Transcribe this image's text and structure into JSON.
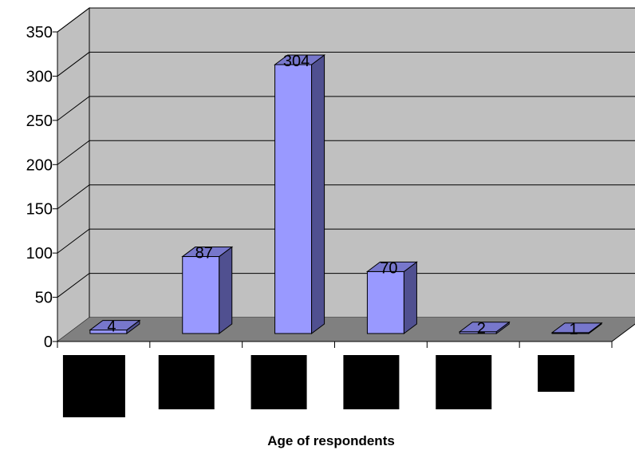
{
  "chart_data": {
    "type": "bar",
    "title": "",
    "xlabel": "Age of respondents",
    "ylabel": "",
    "categories": [
      "",
      "",
      "",
      "",
      "",
      ""
    ],
    "values": [
      4,
      87,
      304,
      70,
      2,
      1
    ],
    "ylim": [
      0,
      350
    ],
    "yticks": [
      0,
      50,
      100,
      150,
      200,
      250,
      300,
      350
    ],
    "yticks_labels": [
      "0",
      "50",
      "100",
      "150",
      "200",
      "250",
      "300",
      "350"
    ],
    "data_labels": [
      "4",
      "87",
      "304",
      "70",
      "2",
      "1"
    ],
    "grid": true,
    "style": "3d-column",
    "colors": {
      "bar_front": "#9999ff",
      "bar_side": "#505090",
      "bar_top": "#7777cc",
      "wall": "#c0c0c0",
      "floor": "#808080",
      "redacted_label": "#000000"
    }
  }
}
